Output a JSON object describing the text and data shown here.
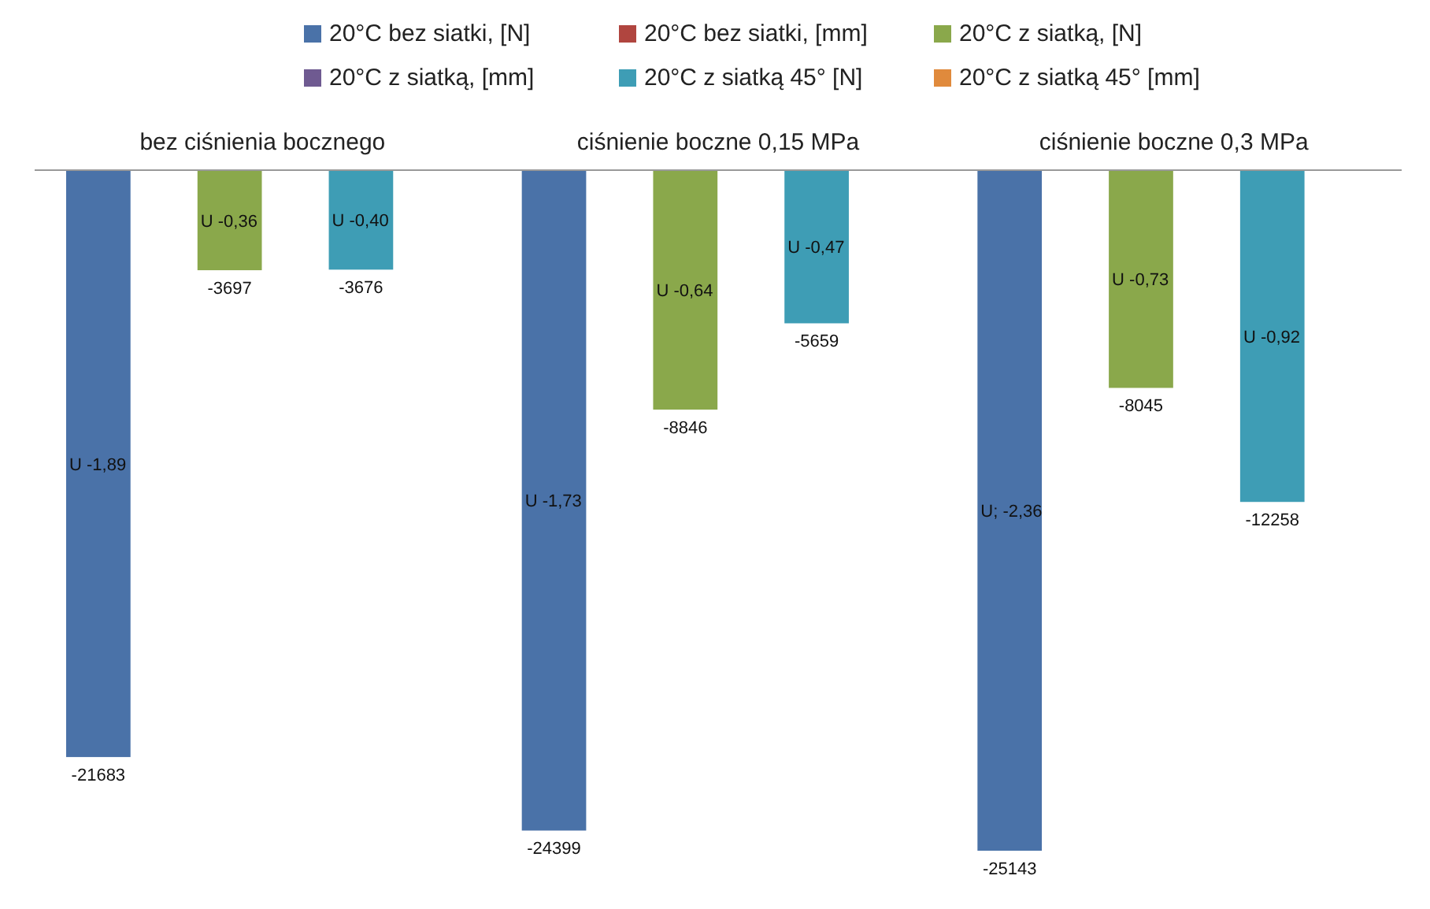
{
  "chart_data": {
    "type": "bar",
    "categories": [
      "bez ciśnienia bocznego",
      "ciśnienie boczne 0,15 MPa",
      "ciśnienie boczne 0,3 MPa"
    ],
    "series": [
      {
        "name": "20°C bez siatki, [N]",
        "color": "#4a72a8",
        "values": [
          -21683,
          -24399,
          -25143
        ],
        "value_labels": [
          "-21683",
          "-24399",
          "-25143"
        ]
      },
      {
        "name": "20°C bez siatki, [mm]",
        "color": "#b0453f",
        "values": [
          -1.89,
          -1.73,
          -2.36
        ]
      },
      {
        "name": "20°C z siatką, [N]",
        "color": "#8aa84b",
        "values": [
          -3697,
          -8846,
          -8045
        ],
        "value_labels": [
          "-3697",
          "-8846",
          "-8045"
        ]
      },
      {
        "name": "20°C z siatką, [mm]",
        "color": "#6f5a91",
        "values": [
          -0.36,
          -0.64,
          -0.73
        ]
      },
      {
        "name": "20°C z siatką 45° [N]",
        "color": "#3e9db5",
        "values": [
          -3676,
          -5659,
          -12258
        ],
        "value_labels": [
          "-3676",
          "-5659",
          "-12258"
        ]
      },
      {
        "name": "20°C z siatką 45° [mm]",
        "color": "#e08a3c",
        "values": [
          -0.4,
          -0.47,
          -0.92
        ]
      }
    ],
    "legend": "top",
    "annotations": [
      "U -1,89",
      "U -0,36",
      "U -0,40",
      "U -1,73",
      "U -0,64",
      "U -0,47",
      "U; -2,36",
      "U -0,73",
      "U -0,92"
    ]
  }
}
